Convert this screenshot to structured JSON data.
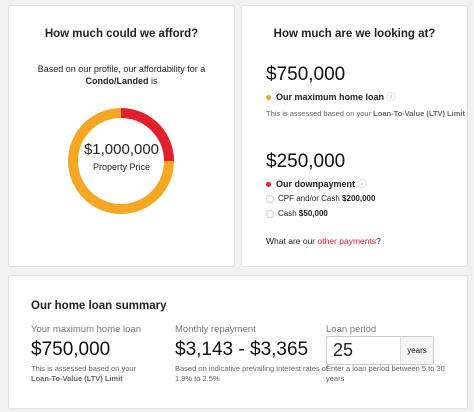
{
  "afford": {
    "title": "How much could we afford?",
    "intro": "Based on our profile, our affordability for a",
    "property_type": "Condo/Landed",
    "intro_end": "is",
    "price": "$1,000,000",
    "price_label": "Property Price"
  },
  "looking": {
    "title": "How much are we looking at?",
    "loan": {
      "amount": {
        "value": 750000,
        "label": "$750,000"
      },
      "label": "Our maximum home loan",
      "color": "#f5a623",
      "note_start": "This is assessed based on your",
      "note_bold": "Loan-To-Value (LTV) Limit"
    },
    "downpayment": {
      "amount": {
        "value": 250000,
        "label": "$250,000"
      },
      "label": "Our downpayment",
      "color": "#e0202a",
      "options": [
        {
          "label": "CPF and/or Cash",
          "amount": "$200,000"
        },
        {
          "label": "Cash",
          "amount": "$50,000"
        }
      ]
    },
    "question_start": "What are our",
    "question_link": "other payments",
    "question_end": "?"
  },
  "summary": {
    "title": "Our home loan summary",
    "loan": {
      "label": "Your maximum home loan",
      "value": "$750,000",
      "note_start": "This is assessed based on your",
      "note_bold": "Loan-To-Value (LTV) Limit"
    },
    "repayment": {
      "label": "Monthly repayment",
      "value": "$3,143 - $3,365",
      "note": [
        "Based on indicative prevailing interest rates of",
        "1.9% to 2.5%"
      ]
    },
    "period": {
      "label": "Loan period",
      "value": "25",
      "unit": "years",
      "note": [
        "Enter a loan period between 5 to 30",
        "years"
      ]
    }
  }
}
